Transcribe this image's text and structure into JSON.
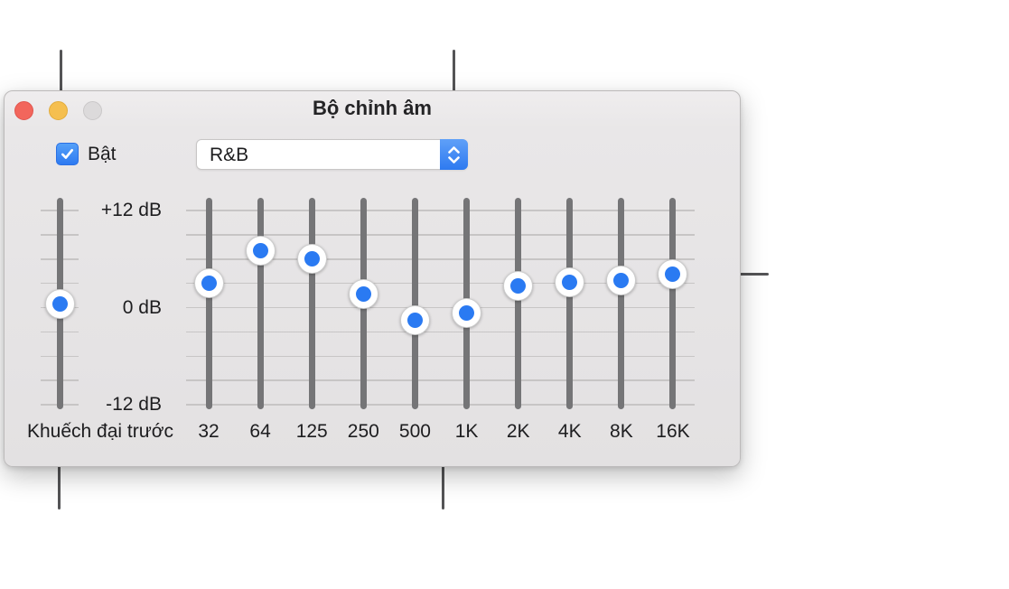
{
  "window": {
    "title": "Bộ chỉnh âm",
    "traffic_lights": {
      "close": "close-button",
      "minimize": "minimize-button",
      "zoom": "zoom-button"
    },
    "enable_checkbox": {
      "label": "Bật",
      "checked": true
    },
    "preset_dropdown": {
      "value": "R&B"
    },
    "equalizer": {
      "db_scale": {
        "max_db": 12,
        "min_db": -12,
        "step_db": 3,
        "max_label": "+12 dB",
        "mid_label": "0 dB",
        "min_label": "-12 dB"
      },
      "preamp": {
        "label": "Khuếch đại trước",
        "db": 0.4
      },
      "bands": [
        {
          "freq": "32",
          "db": 3.0
        },
        {
          "freq": "64",
          "db": 7.0
        },
        {
          "freq": "125",
          "db": 6.0
        },
        {
          "freq": "250",
          "db": 1.7
        },
        {
          "freq": "500",
          "db": -1.6
        },
        {
          "freq": "1K",
          "db": -0.7
        },
        {
          "freq": "2K",
          "db": 2.7
        },
        {
          "freq": "4K",
          "db": 3.1
        },
        {
          "freq": "8K",
          "db": 3.3
        },
        {
          "freq": "16K",
          "db": 4.1
        }
      ]
    }
  },
  "icons": {
    "checkbox": "checkmark-icon",
    "dropdown": "chevron-up-down-icon"
  },
  "colors": {
    "accent_blue": "#2e7af1",
    "handle_dot_blue": "#2a7af2",
    "window_bg": "#e7e5e6",
    "track_gray": "#757577",
    "gridline_gray": "#c7c5c5",
    "callout_gray": "#545456",
    "traffic_red": "#f2665c",
    "traffic_yellow": "#f5bf4f",
    "traffic_gray": "#dcdadb",
    "text": "#1d1d1f"
  }
}
